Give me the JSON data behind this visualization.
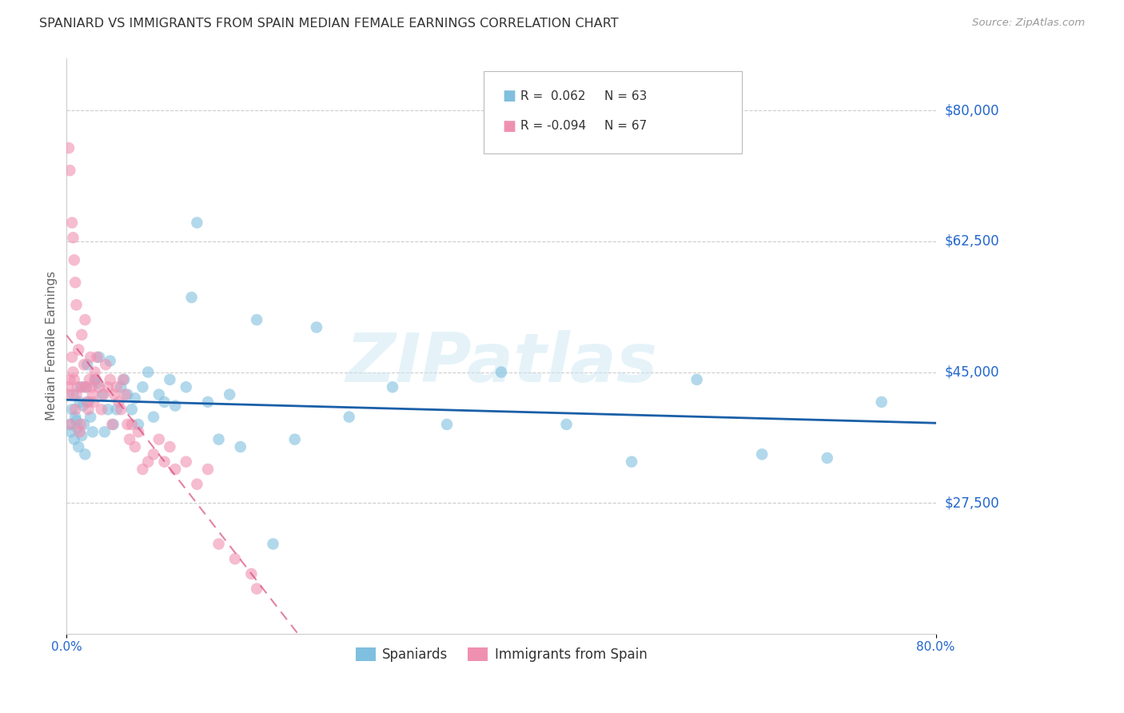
{
  "title": "SPANIARD VS IMMIGRANTS FROM SPAIN MEDIAN FEMALE EARNINGS CORRELATION CHART",
  "source": "Source: ZipAtlas.com",
  "ylabel": "Median Female Earnings",
  "xlim": [
    0.0,
    0.8
  ],
  "ylim": [
    10000,
    87000
  ],
  "yticks": [
    27500,
    45000,
    62500,
    80000
  ],
  "ytick_labels": [
    "$27,500",
    "$45,000",
    "$62,500",
    "$80,000"
  ],
  "xticks": [
    0.0,
    0.8
  ],
  "xtick_labels": [
    "0.0%",
    "80.0%"
  ],
  "watermark": "ZIPatlas",
  "blue_color": "#7fbfdf",
  "pink_color": "#f090b0",
  "blue_line_color": "#1a5fa8",
  "pink_line_color": "#d44070",
  "axis_label_color": "#2266cc",
  "title_color": "#333333",
  "grid_color": "#cccccc",
  "spaniards_x": [
    0.003,
    0.004,
    0.005,
    0.006,
    0.007,
    0.008,
    0.009,
    0.01,
    0.011,
    0.012,
    0.013,
    0.014,
    0.015,
    0.016,
    0.017,
    0.018,
    0.019,
    0.02,
    0.022,
    0.024,
    0.026,
    0.028,
    0.03,
    0.033,
    0.035,
    0.038,
    0.04,
    0.043,
    0.046,
    0.05,
    0.053,
    0.056,
    0.06,
    0.063,
    0.066,
    0.07,
    0.075,
    0.08,
    0.085,
    0.09,
    0.095,
    0.1,
    0.11,
    0.115,
    0.12,
    0.13,
    0.14,
    0.15,
    0.16,
    0.175,
    0.19,
    0.21,
    0.23,
    0.26,
    0.3,
    0.35,
    0.4,
    0.46,
    0.52,
    0.58,
    0.64,
    0.7,
    0.75
  ],
  "spaniards_y": [
    38000,
    37000,
    40000,
    42000,
    36000,
    39000,
    38500,
    37500,
    35000,
    41000,
    43000,
    36500,
    40500,
    38000,
    34000,
    43000,
    46000,
    41000,
    39000,
    37000,
    44000,
    43500,
    47000,
    42000,
    37000,
    40000,
    46500,
    38000,
    40000,
    43000,
    44000,
    42000,
    40000,
    41500,
    38000,
    43000,
    45000,
    39000,
    42000,
    41000,
    44000,
    40500,
    43000,
    55000,
    65000,
    41000,
    36000,
    42000,
    35000,
    52000,
    22000,
    36000,
    51000,
    39000,
    43000,
    38000,
    45000,
    38000,
    33000,
    44000,
    34000,
    33500,
    41000
  ],
  "immigrants_x": [
    0.001,
    0.002,
    0.003,
    0.004,
    0.005,
    0.006,
    0.007,
    0.008,
    0.009,
    0.01,
    0.011,
    0.012,
    0.013,
    0.014,
    0.015,
    0.016,
    0.017,
    0.018,
    0.019,
    0.02,
    0.021,
    0.022,
    0.023,
    0.024,
    0.025,
    0.026,
    0.027,
    0.028,
    0.03,
    0.032,
    0.034,
    0.036,
    0.038,
    0.04,
    0.042,
    0.044,
    0.046,
    0.048,
    0.05,
    0.052,
    0.054,
    0.056,
    0.058,
    0.06,
    0.063,
    0.066,
    0.07,
    0.075,
    0.08,
    0.085,
    0.09,
    0.095,
    0.1,
    0.11,
    0.12,
    0.13,
    0.14,
    0.155,
    0.17,
    0.175,
    0.002,
    0.003,
    0.005,
    0.006,
    0.007,
    0.008,
    0.009
  ],
  "immigrants_y": [
    43000,
    42000,
    44000,
    38000,
    47000,
    45000,
    44000,
    40000,
    42000,
    43000,
    48000,
    37000,
    38000,
    50000,
    43000,
    46000,
    52000,
    43000,
    41000,
    40000,
    44000,
    47000,
    43000,
    42000,
    41000,
    45000,
    44000,
    47000,
    43000,
    40000,
    42000,
    46000,
    43000,
    44000,
    38000,
    42000,
    43000,
    41000,
    40000,
    44000,
    42000,
    38000,
    36000,
    38000,
    35000,
    37000,
    32000,
    33000,
    34000,
    36000,
    33000,
    35000,
    32000,
    33000,
    30000,
    32000,
    22000,
    20000,
    18000,
    16000,
    75000,
    72000,
    65000,
    63000,
    60000,
    57000,
    54000
  ]
}
